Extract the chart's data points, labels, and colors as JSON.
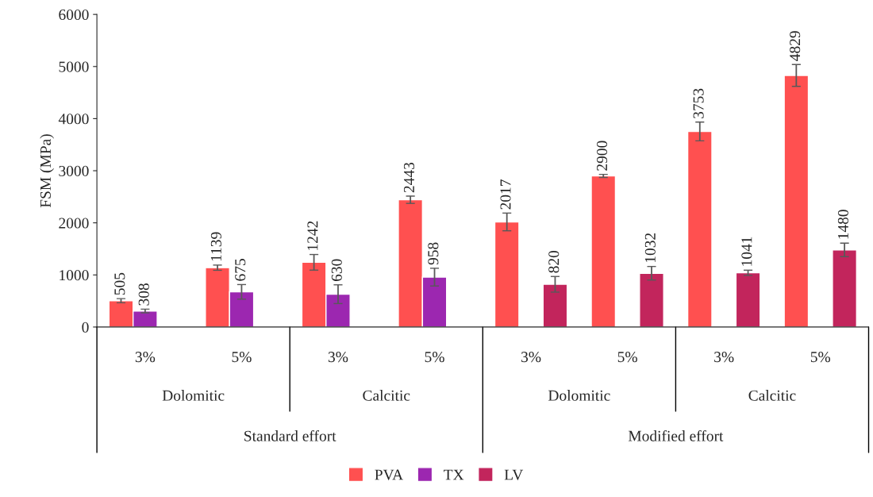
{
  "chart_data": {
    "type": "bar",
    "ylabel": "FSM (MPa)",
    "categories": [
      "3%",
      "5%",
      "3%",
      "5%",
      "3%",
      "5%",
      "3%",
      "5%"
    ],
    "annotations": [
      "Dolomitic",
      "Calcitic",
      "Dolomitic",
      "Calcitic",
      "Standard effort",
      "Modified effort"
    ],
    "series": [
      {
        "name": "PVA",
        "color": "#ff5050",
        "values": [
          505,
          1139,
          1242,
          2443,
          2017,
          2900,
          3753,
          4829
        ],
        "errors": [
          40,
          50,
          150,
          70,
          170,
          30,
          180,
          210
        ]
      },
      {
        "name": "TX",
        "color": "#9c27b0",
        "values": [
          308,
          675,
          630,
          958,
          null,
          null,
          null,
          null
        ],
        "errors": [
          35,
          140,
          180,
          170,
          null,
          null,
          null,
          null
        ]
      },
      {
        "name": "LV",
        "color": "#c2255c",
        "values": [
          null,
          null,
          null,
          null,
          820,
          1032,
          1041,
          1480
        ],
        "errors": [
          null,
          null,
          null,
          null,
          150,
          130,
          50,
          130
        ]
      }
    ],
    "ylim": [
      0,
      6000
    ],
    "yticks": [
      0,
      1000,
      2000,
      3000,
      4000,
      5000,
      6000
    ],
    "grid": false,
    "legend": "bottom",
    "data_labels": true
  }
}
